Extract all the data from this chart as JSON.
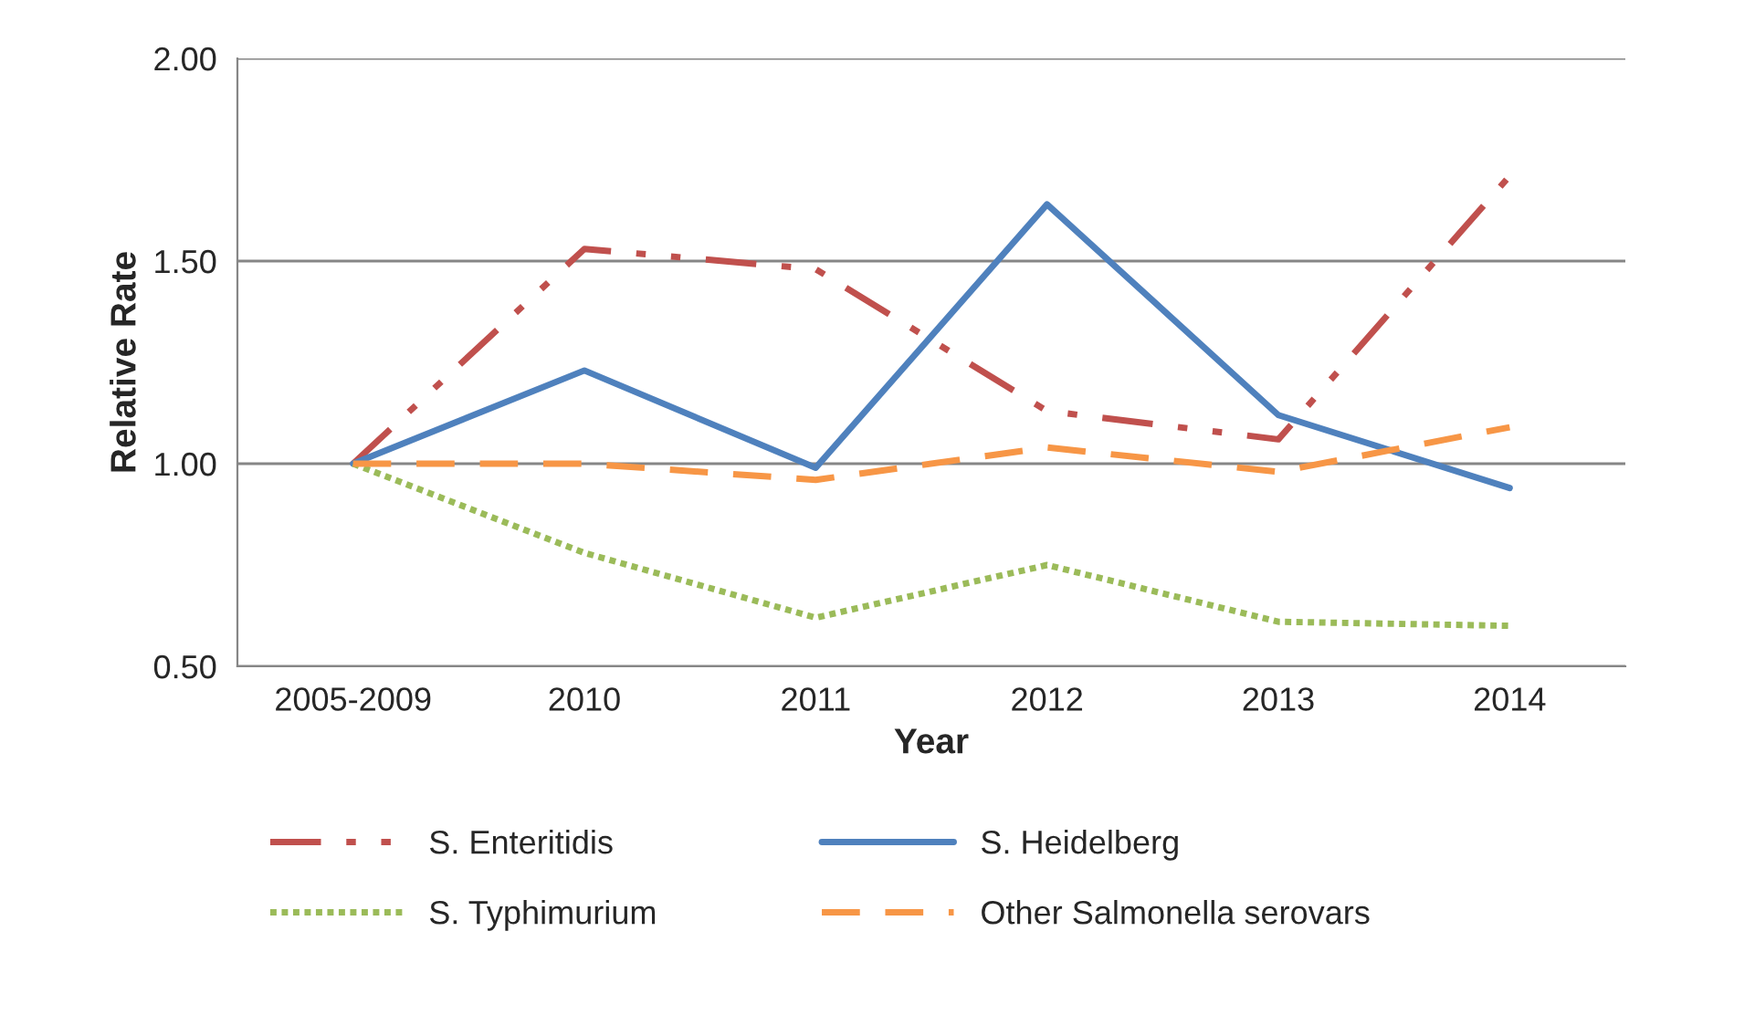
{
  "chart_data": {
    "type": "line",
    "xlabel": "Year",
    "ylabel": "Relative Rate",
    "categories": [
      "2005-2009",
      "2010",
      "2011",
      "2012",
      "2013",
      "2014"
    ],
    "series": [
      {
        "name": "S. Enteritidis",
        "color": "#c0504d",
        "line_style": "dashdot",
        "values": [
          1.0,
          1.53,
          1.48,
          1.13,
          1.06,
          1.71
        ]
      },
      {
        "name": "S. Heidelberg",
        "color": "#4f81bd",
        "line_style": "solid",
        "values": [
          1.0,
          1.23,
          0.99,
          1.64,
          1.12,
          0.94
        ]
      },
      {
        "name": "S. Typhimurium",
        "color": "#9bbb59",
        "line_style": "dotted",
        "values": [
          1.0,
          0.78,
          0.62,
          0.75,
          0.61,
          0.6
        ]
      },
      {
        "name": "Other Salmonella serovars",
        "color": "#f79646",
        "line_style": "dashed",
        "values": [
          1.0,
          1.0,
          0.96,
          1.04,
          0.98,
          1.09
        ]
      }
    ],
    "ylim": [
      0.5,
      2.0
    ],
    "yticks": [
      {
        "value": 0.5,
        "label": "0.50"
      },
      {
        "value": 1.0,
        "label": "1.00"
      },
      {
        "value": 1.5,
        "label": "1.50"
      },
      {
        "value": 2.0,
        "label": "2.00"
      }
    ],
    "grid": "y",
    "legend": "bottom",
    "marker": "none"
  }
}
